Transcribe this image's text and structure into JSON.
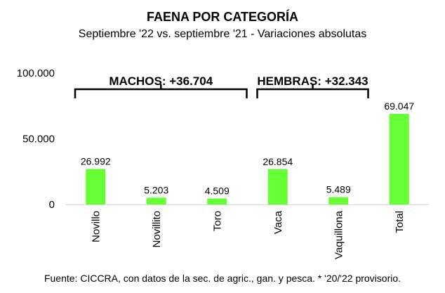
{
  "chart_data": {
    "type": "bar",
    "title": "FAENA POR CATEGORÍA",
    "subtitle": "Septiembre '22 vs. septiembre '21 - Variaciones absolutas",
    "categories": [
      "Novillo",
      "Novillito",
      "Toro",
      "Vaca",
      "Vaquillona",
      "Total"
    ],
    "values": [
      26992,
      5203,
      4509,
      26854,
      5489,
      69047
    ],
    "value_labels": [
      "26.992",
      "5.203",
      "4.509",
      "26.854",
      "5.489",
      "69.047"
    ],
    "ylim": [
      0,
      100000
    ],
    "yticks": [
      0,
      50000,
      100000
    ],
    "ytick_labels": [
      "0",
      "50.000",
      "100.000"
    ],
    "grid": false,
    "bar_color": "#66ff33",
    "groups": [
      {
        "label": "MACHOS: +36.704",
        "first": 0,
        "last": 2
      },
      {
        "label": "HEMBRAS: +32.343",
        "first": 3,
        "last": 4
      }
    ],
    "source": "Fuente: CICCRA, con datos de la sec. de agric., gan. y pesca. * '20/'22 provisorio."
  }
}
